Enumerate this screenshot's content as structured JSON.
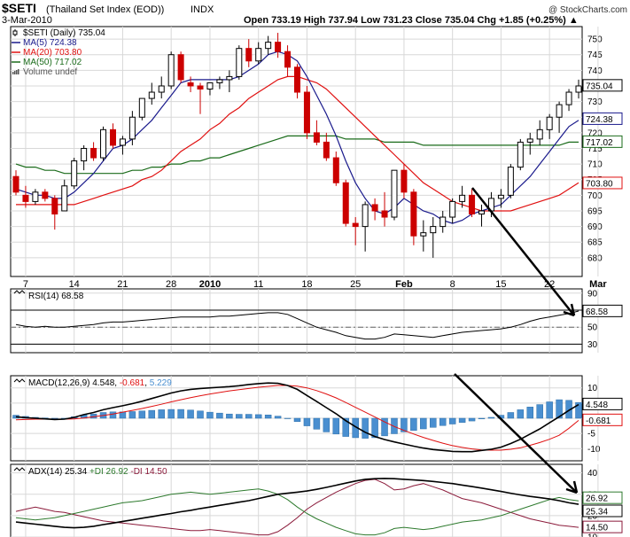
{
  "header": {
    "symbol": "$SETI",
    "name": "(Thailand Set Index (EOD))",
    "exchange": "INDX",
    "date": "3-Mar-2010",
    "copyright": "@ StockCharts.com",
    "ohlc_text": "Open 733.19  High 737.94  Low 731.23  Close 735.04  Chg +1.85 (+0.25%) ▲"
  },
  "colors": {
    "up": "#000000",
    "down": "#cc0000",
    "ma5": "#1a1a8c",
    "ma20": "#e01010",
    "ma50": "#1a6b1a",
    "grid": "#d8d8d8",
    "hist": "#4a8fd0",
    "di_plus": "#2d7a2d",
    "di_minus": "#8b1a3a"
  },
  "chart_data": [
    {
      "type": "candlestick",
      "panel": "price",
      "title": "$SETI (Daily) 735.04",
      "legend": [
        {
          "label": "$SETI (Daily) 735.04",
          "icon": "candle-icon"
        },
        {
          "label": "MA(5) 724.38",
          "icon": "line-icon"
        },
        {
          "label": "MA(20) 703.80",
          "icon": "line-icon"
        },
        {
          "label": "MA(50) 717.02",
          "icon": "line-icon"
        },
        {
          "label": "Volume undef",
          "icon": "bars-icon"
        }
      ],
      "ylim": [
        674,
        754
      ],
      "y_ticks": [
        680,
        685,
        690,
        695,
        700,
        705,
        710,
        715,
        720,
        725,
        730,
        735,
        740,
        745,
        750
      ],
      "x_labels": [
        {
          "label": "7",
          "i": 1,
          "bold": false
        },
        {
          "label": "14",
          "i": 6,
          "bold": false
        },
        {
          "label": "21",
          "i": 11,
          "bold": false
        },
        {
          "label": "28",
          "i": 16,
          "bold": false
        },
        {
          "label": "2010",
          "i": 20,
          "bold": true
        },
        {
          "label": "11",
          "i": 25,
          "bold": false
        },
        {
          "label": "18",
          "i": 30,
          "bold": false
        },
        {
          "label": "25",
          "i": 35,
          "bold": false
        },
        {
          "label": "Feb",
          "i": 40,
          "bold": true
        },
        {
          "label": "8",
          "i": 45,
          "bold": false
        },
        {
          "label": "15",
          "i": 50,
          "bold": false
        },
        {
          "label": "22",
          "i": 55,
          "bold": false
        },
        {
          "label": "Mar",
          "i": 60,
          "bold": true
        }
      ],
      "ohlc": [
        [
          706,
          708,
          700,
          701
        ],
        [
          700,
          703,
          696,
          698
        ],
        [
          698,
          702,
          697,
          701
        ],
        [
          701,
          702,
          698,
          699
        ],
        [
          699,
          700,
          689,
          694
        ],
        [
          695,
          705,
          695,
          703
        ],
        [
          703,
          712,
          702,
          711
        ],
        [
          711,
          716,
          708,
          715
        ],
        [
          715,
          717,
          711,
          712
        ],
        [
          712,
          722,
          711,
          721
        ],
        [
          721,
          723,
          715,
          716
        ],
        [
          716,
          719,
          713,
          718
        ],
        [
          718,
          727,
          716,
          725
        ],
        [
          725,
          731,
          724,
          731
        ],
        [
          731,
          736,
          729,
          733
        ],
        [
          733,
          738,
          731,
          735
        ],
        [
          735,
          746,
          734,
          745
        ],
        [
          745,
          746,
          736,
          737
        ],
        [
          736,
          738,
          733,
          735
        ],
        [
          735,
          736,
          726,
          734
        ],
        [
          734,
          736,
          732,
          736
        ],
        [
          736,
          738,
          734,
          737
        ],
        [
          737,
          740,
          733,
          738
        ],
        [
          738,
          748,
          737,
          747
        ],
        [
          747,
          750,
          741,
          743
        ],
        [
          743,
          749,
          742,
          747
        ],
        [
          747,
          751,
          745,
          749
        ],
        [
          749,
          752,
          744,
          746
        ],
        [
          746,
          748,
          738,
          741
        ],
        [
          741,
          742,
          731,
          733
        ],
        [
          733,
          735,
          718,
          720
        ],
        [
          720,
          724,
          716,
          717
        ],
        [
          717,
          720,
          711,
          712
        ],
        [
          712,
          714,
          703,
          704
        ],
        [
          704,
          705,
          690,
          691
        ],
        [
          691,
          693,
          684,
          690
        ],
        [
          690,
          698,
          682,
          697
        ],
        [
          697,
          699,
          692,
          695
        ],
        [
          695,
          701,
          690,
          693
        ],
        [
          693,
          708,
          692,
          708
        ],
        [
          708,
          710,
          699,
          701
        ],
        [
          701,
          702,
          684,
          687
        ],
        [
          687,
          692,
          682,
          688
        ],
        [
          688,
          693,
          680,
          690
        ],
        [
          690,
          695,
          688,
          693
        ],
        [
          693,
          699,
          691,
          698
        ],
        [
          698,
          703,
          696,
          700
        ],
        [
          700,
          702,
          693,
          694
        ],
        [
          694,
          697,
          690,
          695
        ],
        [
          695,
          701,
          693,
          699
        ],
        [
          699,
          702,
          696,
          700
        ],
        [
          700,
          710,
          699,
          709
        ],
        [
          709,
          718,
          708,
          717
        ],
        [
          717,
          720,
          713,
          718
        ],
        [
          718,
          724,
          716,
          721
        ],
        [
          721,
          726,
          718,
          725
        ],
        [
          725,
          730,
          720,
          729
        ],
        [
          729,
          734,
          727,
          733
        ],
        [
          733,
          737,
          731,
          735
        ]
      ],
      "ma5": [
        702,
        701,
        700,
        700,
        699,
        699,
        701,
        704,
        707,
        711,
        715,
        716,
        718,
        721,
        724,
        728,
        732,
        736,
        737,
        737,
        737,
        737,
        737,
        738,
        740,
        742,
        745,
        746,
        745,
        743,
        738,
        732,
        726,
        719,
        711,
        704,
        699,
        695,
        694,
        696,
        699,
        697,
        695,
        694,
        692,
        691,
        692,
        694,
        695,
        696,
        697,
        700,
        703,
        706,
        710,
        714,
        718,
        722,
        724
      ],
      "ma20": [
        697,
        697,
        697,
        697,
        697,
        697,
        697,
        698,
        699,
        700,
        701,
        702,
        703,
        705,
        706,
        708,
        711,
        714,
        716,
        718,
        721,
        723,
        726,
        728,
        731,
        733,
        735,
        737,
        738,
        738,
        737,
        736,
        734,
        731,
        728,
        725,
        722,
        719,
        716,
        713,
        710,
        707,
        704,
        702,
        700,
        698,
        697,
        696,
        695,
        695,
        695,
        695,
        696,
        697,
        698,
        699,
        700,
        702,
        704
      ],
      "ma50": [
        710,
        709,
        709,
        708,
        708,
        707,
        707,
        707,
        707,
        707,
        707,
        707,
        708,
        708,
        709,
        709,
        710,
        710,
        711,
        711,
        712,
        712,
        713,
        714,
        715,
        716,
        717,
        718,
        719,
        719,
        719,
        719,
        719,
        719,
        718,
        718,
        718,
        718,
        717,
        717,
        717,
        717,
        716,
        716,
        716,
        716,
        716,
        716,
        716,
        716,
        716,
        716,
        716,
        716,
        716,
        716,
        716,
        717,
        717
      ]
    },
    {
      "type": "line",
      "panel": "rsi",
      "title": "RSI(14) 68.58",
      "ylim": [
        20,
        95
      ],
      "y_ticks": [
        30,
        50,
        70,
        90
      ],
      "overbought": 70,
      "oversold": 30,
      "last_label": "68.58",
      "values": [
        53,
        51,
        50,
        51,
        50,
        50,
        51,
        52,
        53,
        55,
        56,
        56,
        57,
        58,
        59,
        60,
        61,
        62,
        62,
        62,
        62,
        63,
        63,
        64,
        65,
        66,
        67,
        67,
        65,
        60,
        55,
        50,
        47,
        44,
        40,
        38,
        36,
        36,
        38,
        42,
        41,
        40,
        39,
        38,
        40,
        42,
        44,
        45,
        46,
        47,
        48,
        50,
        53,
        57,
        60,
        62,
        64,
        66,
        69
      ]
    },
    {
      "type": "line+bar",
      "panel": "macd",
      "title": "MACD(12,26,9) 4.548, -0.681, 5.229",
      "legend": [
        "MACD(12,26,9) 4.548",
        "-0.681",
        "5.229"
      ],
      "ylim": [
        -14,
        14
      ],
      "y_ticks": [
        -10,
        -5,
        0,
        5,
        10
      ],
      "last_labels": [
        "4.548",
        "-0.681"
      ],
      "macd": [
        0.5,
        0.2,
        0,
        -0.2,
        -0.4,
        -0.3,
        0.3,
        1.2,
        1.9,
        2.8,
        3.5,
        4.1,
        4.8,
        5.6,
        6.5,
        7.4,
        8.3,
        9.0,
        9.5,
        9.8,
        10.0,
        10.2,
        10.4,
        10.7,
        11.1,
        11.4,
        11.6,
        11.5,
        10.8,
        9.5,
        7.5,
        5.5,
        3.5,
        1.5,
        -0.8,
        -2.8,
        -4.6,
        -6.0,
        -7.0,
        -7.8,
        -8.5,
        -9.2,
        -9.8,
        -10.3,
        -10.6,
        -10.9,
        -11.0,
        -11.0,
        -10.6,
        -10.2,
        -9.5,
        -8.3,
        -6.9,
        -5.2,
        -3.5,
        -1.5,
        0.5,
        2.6,
        4.5
      ],
      "signal": [
        -0.5,
        -0.4,
        -0.3,
        -0.3,
        -0.3,
        -0.3,
        -0.2,
        0.1,
        0.5,
        0.9,
        1.4,
        2.0,
        2.6,
        3.2,
        3.9,
        4.6,
        5.4,
        6.1,
        6.8,
        7.4,
        8.0,
        8.5,
        9.0,
        9.4,
        9.8,
        10.2,
        10.5,
        10.8,
        10.8,
        10.6,
        10.0,
        9.1,
        8.0,
        6.7,
        5.2,
        3.6,
        2.0,
        0.4,
        -1.2,
        -2.7,
        -4.0,
        -5.2,
        -6.3,
        -7.3,
        -8.2,
        -9.0,
        -9.6,
        -10.1,
        -10.4,
        -10.5,
        -10.5,
        -10.2,
        -9.7,
        -8.9,
        -8.0,
        -6.9,
        -5.6,
        -3.3,
        -0.7
      ],
      "histogram": [
        1.0,
        0.6,
        0.3,
        0.1,
        -0.1,
        0.0,
        0.5,
        1.1,
        1.4,
        1.9,
        2.1,
        2.1,
        2.2,
        2.4,
        2.6,
        2.8,
        2.9,
        2.9,
        2.7,
        2.4,
        2.0,
        1.7,
        1.4,
        1.3,
        1.3,
        1.2,
        1.1,
        0.7,
        0.0,
        -1.1,
        -2.5,
        -3.6,
        -4.5,
        -5.2,
        -6.0,
        -6.4,
        -6.6,
        -6.4,
        -5.8,
        -5.1,
        -4.5,
        -4.0,
        -3.5,
        -3.0,
        -2.4,
        -1.9,
        -1.4,
        -0.9,
        -0.2,
        0.3,
        1.0,
        1.9,
        2.8,
        3.7,
        4.5,
        5.4,
        6.1,
        5.9,
        5.2
      ]
    },
    {
      "type": "line",
      "panel": "adx",
      "title": "ADX(14) 25.34 +DI 26.92 -DI 14.50",
      "legend": [
        "ADX(14) 25.34",
        "+DI 26.92",
        "-DI 14.50"
      ],
      "ylim": [
        10,
        44
      ],
      "y_ticks": [
        10,
        20,
        30,
        40
      ],
      "last_labels": [
        "26.92",
        "25.34",
        "14.50"
      ],
      "adx": [
        17,
        16.5,
        16,
        15.5,
        15,
        14.5,
        14.3,
        14.5,
        15,
        15.8,
        16.5,
        17.3,
        18,
        18.8,
        19.5,
        20.3,
        21,
        21.8,
        22.5,
        23.3,
        24,
        24.8,
        25.5,
        26.3,
        27,
        28,
        29,
        30,
        30.5,
        31,
        31.5,
        32.3,
        33.2,
        34.2,
        35.2,
        36.2,
        37,
        37.3,
        37.4,
        37.3,
        37,
        36.7,
        36.4,
        36,
        35.5,
        35,
        34.3,
        33.6,
        32.9,
        32.1,
        31.3,
        30.5,
        29.7,
        29,
        28.4,
        27.8,
        27,
        26,
        25.3
      ],
      "di_plus": [
        19,
        18.5,
        18,
        18.5,
        19,
        20,
        21,
        22,
        23,
        24,
        25,
        26,
        26.5,
        27,
        28,
        29,
        30,
        30.5,
        31,
        30.5,
        30,
        30.5,
        31,
        31.5,
        32,
        32.5,
        31.5,
        30,
        27.5,
        24,
        21,
        18.5,
        16.5,
        14.5,
        13,
        11.5,
        11,
        11,
        12,
        14,
        14.5,
        14,
        13.5,
        14,
        15,
        16,
        17,
        17.5,
        18,
        19,
        20,
        21.5,
        23,
        24.5,
        26,
        27.5,
        28.5,
        27.5,
        26.9
      ],
      "di_minus": [
        22,
        23,
        24,
        23,
        22,
        21.5,
        20.5,
        19.5,
        18.5,
        17.5,
        17,
        16.5,
        16,
        15.5,
        15,
        14.5,
        14,
        13.5,
        13,
        13,
        13.5,
        13,
        12.5,
        12,
        11.5,
        11,
        11,
        12.5,
        15.5,
        19,
        23,
        26,
        28.5,
        31,
        33,
        35,
        36.5,
        37,
        35,
        32,
        32.5,
        34,
        35,
        33.5,
        32,
        30,
        28,
        27,
        26,
        24.5,
        23,
        21.5,
        20,
        18.5,
        17.5,
        16.5,
        15.5,
        15,
        14.5
      ]
    }
  ]
}
